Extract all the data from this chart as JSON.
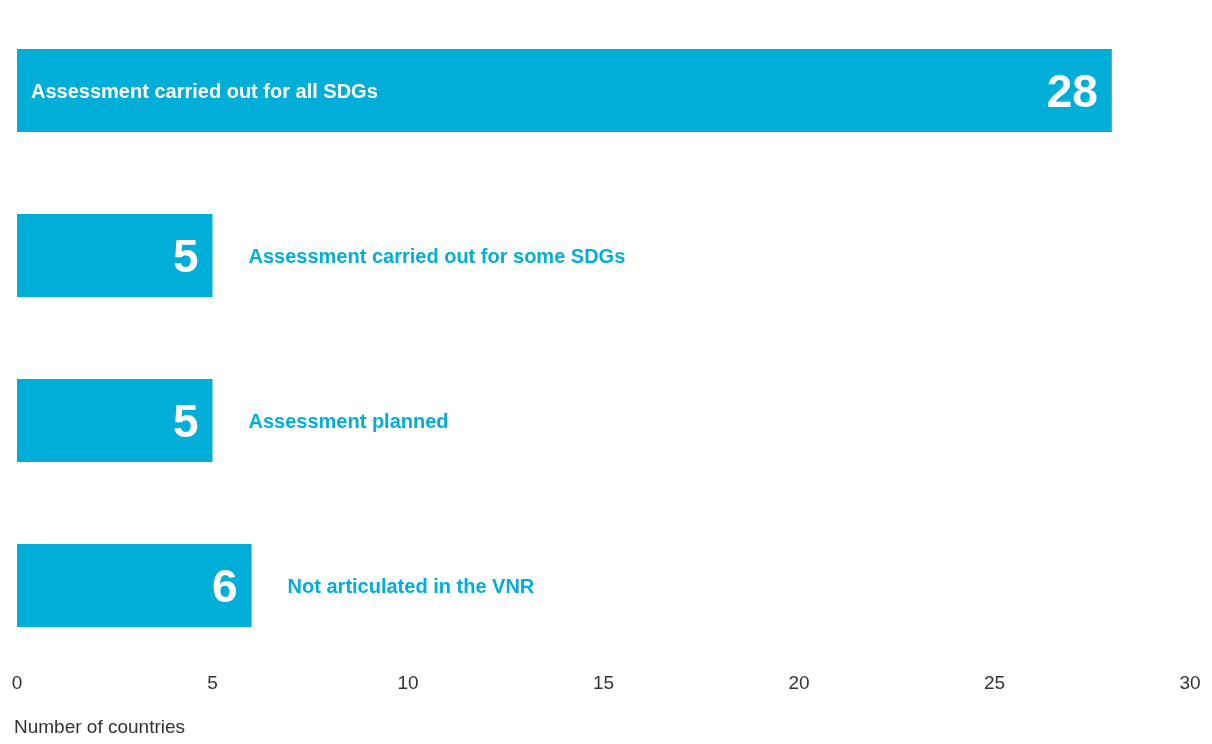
{
  "chart_data": {
    "type": "bar",
    "orientation": "horizontal",
    "xlabel": "Number of countries",
    "categories": [
      "Assessment carried out for all SDGs",
      "Assessment carried out for some SDGs",
      "Assessment planned",
      "Not articulated in the VNR"
    ],
    "values": [
      28,
      5,
      5,
      6
    ],
    "color": "#00aed8",
    "xlim": [
      0,
      30
    ],
    "xticks": [
      0,
      5,
      10,
      15,
      20,
      25,
      30
    ],
    "data_labels": true
  }
}
